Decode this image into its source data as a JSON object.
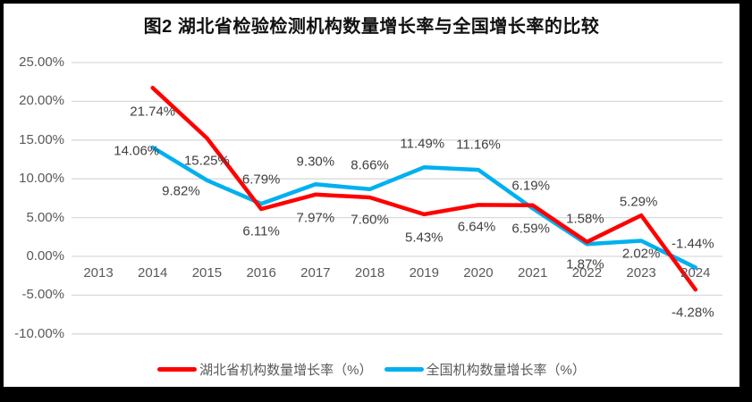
{
  "chart_data": {
    "type": "line",
    "title": "图2  湖北省检验检测机构数量增长率与全国增长率的比较",
    "categories": [
      "2013",
      "2014",
      "2015",
      "2016",
      "2017",
      "2018",
      "2019",
      "2020",
      "2021",
      "2022",
      "2023",
      "2024"
    ],
    "series": [
      {
        "name": "湖北省机构数量增长率（%）",
        "color": "#ff0000",
        "values": [
          null,
          21.74,
          15.25,
          6.11,
          7.97,
          7.6,
          5.43,
          6.64,
          6.59,
          1.87,
          5.29,
          -4.28
        ]
      },
      {
        "name": "全国机构数量增长率（%）",
        "color": "#00b0f0",
        "values": [
          null,
          14.06,
          9.82,
          6.79,
          9.3,
          8.66,
          11.49,
          11.16,
          6.19,
          1.58,
          2.02,
          -1.44
        ]
      }
    ],
    "y_axis": {
      "min": -10,
      "max": 25,
      "step": 5,
      "tick_labels": [
        "25.00%",
        "20.00%",
        "15.00%",
        "10.00%",
        "5.00%",
        "0.00%",
        "-5.00%",
        "-10.00%"
      ]
    },
    "x_axis": {
      "tick_labels": [
        "2013",
        "2014",
        "2015",
        "2016",
        "2017",
        "2018",
        "2019",
        "2020",
        "2021",
        "2022",
        "2023",
        "2024"
      ]
    },
    "grid": true,
    "data_labels": true,
    "label_format": "0.00%",
    "legend_position": "bottom"
  },
  "palette": {
    "frame_background": "#000000",
    "chart_background": "#ffffff",
    "gridline": "#d9d9d9",
    "axis_text": "#595959",
    "data_label_text": "#404040",
    "title_text": "#111111"
  }
}
